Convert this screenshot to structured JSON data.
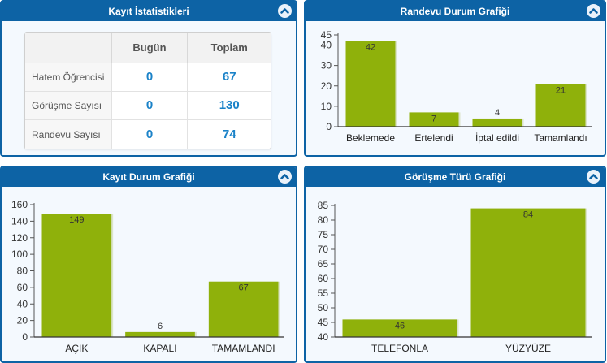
{
  "colors": {
    "header": "#0d63a5",
    "bar": "#8fb10b",
    "stat_number": "#1a82c8"
  },
  "stats_panel": {
    "title": "Kayıt İstatistikleri",
    "col_today": "Bugün",
    "col_total": "Toplam",
    "rows": [
      {
        "label": "Hatem Öğrencisi",
        "today": "0",
        "total": "67"
      },
      {
        "label": "Görüşme Sayısı",
        "today": "0",
        "total": "130"
      },
      {
        "label": "Randevu Sayısı",
        "today": "0",
        "total": "74"
      }
    ]
  },
  "appointment_panel": {
    "title": "Randevu Durum Grafiği"
  },
  "registration_panel": {
    "title": "Kayıt Durum Grafiği"
  },
  "meeting_panel": {
    "title": "Görüşme Türü Grafiği"
  },
  "chart_data": [
    {
      "id": "appointment",
      "type": "bar",
      "title": "",
      "categories": [
        "Beklemede",
        "Ertelendi",
        "İptal edildi",
        "Tamamlandı"
      ],
      "values": [
        42,
        7,
        4,
        21
      ],
      "ylim": [
        0,
        45
      ],
      "yticks": [
        0,
        10,
        20,
        30,
        40,
        45
      ],
      "grid": false
    },
    {
      "id": "registration",
      "type": "bar",
      "title": "",
      "categories": [
        "AÇIK",
        "KAPALI",
        "TAMAMLANDI"
      ],
      "values": [
        149,
        6,
        67
      ],
      "ylim": [
        0,
        160
      ],
      "yticks": [
        0,
        20,
        40,
        60,
        80,
        100,
        120,
        140,
        160
      ],
      "grid": false
    },
    {
      "id": "meeting",
      "type": "bar",
      "title": "",
      "categories": [
        "TELEFONLA",
        "YÜZYÜZE"
      ],
      "values": [
        46,
        84
      ],
      "ylim": [
        40,
        85
      ],
      "yticks": [
        40,
        45,
        50,
        55,
        60,
        65,
        70,
        75,
        80,
        85
      ],
      "grid": false
    }
  ]
}
